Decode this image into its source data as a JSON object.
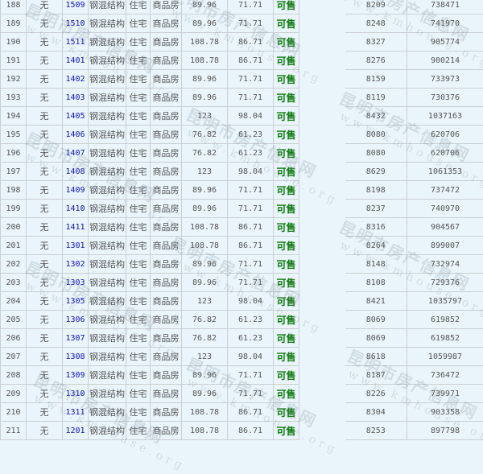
{
  "colors": {
    "background": "#eaf5fb",
    "room_link": "#1010c0",
    "status_available": "#0a7a0a",
    "grid": "#c9cfd3"
  },
  "watermark": {
    "cn": "昆明市房产信息网",
    "en": "www.kmhouse.org"
  },
  "rows": [
    [
      "188",
      "无",
      "1509",
      "钢混结构",
      "住宅",
      "商品房",
      "89.96",
      "71.71",
      "可售",
      "",
      "8209",
      "738471"
    ],
    [
      "189",
      "无",
      "1510",
      "钢混结构",
      "住宅",
      "商品房",
      "89.96",
      "71.71",
      "可售",
      "",
      "8248",
      "741970"
    ],
    [
      "190",
      "无",
      "1511",
      "钢混结构",
      "住宅",
      "商品房",
      "108.78",
      "86.71",
      "可售",
      "",
      "8327",
      "905774"
    ],
    [
      "191",
      "无",
      "1401",
      "钢混结构",
      "住宅",
      "商品房",
      "108.78",
      "86.71",
      "可售",
      "",
      "8276",
      "900214"
    ],
    [
      "192",
      "无",
      "1402",
      "钢混结构",
      "住宅",
      "商品房",
      "89.96",
      "71.71",
      "可售",
      "",
      "8159",
      "733973"
    ],
    [
      "193",
      "无",
      "1403",
      "钢混结构",
      "住宅",
      "商品房",
      "89.96",
      "71.71",
      "可售",
      "",
      "8119",
      "730376"
    ],
    [
      "194",
      "无",
      "1405",
      "钢混结构",
      "住宅",
      "商品房",
      "123",
      "98.04",
      "可售",
      "",
      "8432",
      "1037163"
    ],
    [
      "195",
      "无",
      "1406",
      "钢混结构",
      "住宅",
      "商品房",
      "76.82",
      "61.23",
      "可售",
      "",
      "8080",
      "620706"
    ],
    [
      "196",
      "无",
      "1407",
      "钢混结构",
      "住宅",
      "商品房",
      "76.82",
      "61.23",
      "可售",
      "",
      "8080",
      "620706"
    ],
    [
      "197",
      "无",
      "1408",
      "钢混结构",
      "住宅",
      "商品房",
      "123",
      "98.04",
      "可售",
      "",
      "8629",
      "1061353"
    ],
    [
      "198",
      "无",
      "1409",
      "钢混结构",
      "住宅",
      "商品房",
      "89.96",
      "71.71",
      "可售",
      "",
      "8198",
      "737472"
    ],
    [
      "199",
      "无",
      "1410",
      "钢混结构",
      "住宅",
      "商品房",
      "89.96",
      "71.71",
      "可售",
      "",
      "8237",
      "740970"
    ],
    [
      "200",
      "无",
      "1411",
      "钢混结构",
      "住宅",
      "商品房",
      "108.78",
      "86.71",
      "可售",
      "",
      "8316",
      "904567"
    ],
    [
      "201",
      "无",
      "1301",
      "钢混结构",
      "住宅",
      "商品房",
      "108.78",
      "86.71",
      "可售",
      "",
      "8264",
      "899007"
    ],
    [
      "202",
      "无",
      "1302",
      "钢混结构",
      "住宅",
      "商品房",
      "89.96",
      "71.71",
      "可售",
      "",
      "8148",
      "732974"
    ],
    [
      "203",
      "无",
      "1303",
      "钢混结构",
      "住宅",
      "商品房",
      "89.96",
      "71.71",
      "可售",
      "",
      "8108",
      "729376"
    ],
    [
      "204",
      "无",
      "1305",
      "钢混结构",
      "住宅",
      "商品房",
      "123",
      "98.04",
      "可售",
      "",
      "8421",
      "1035797"
    ],
    [
      "205",
      "无",
      "1306",
      "钢混结构",
      "住宅",
      "商品房",
      "76.82",
      "61.23",
      "可售",
      "",
      "8069",
      "619852"
    ],
    [
      "206",
      "无",
      "1307",
      "钢混结构",
      "住宅",
      "商品房",
      "76.82",
      "61.23",
      "可售",
      "",
      "8069",
      "619852"
    ],
    [
      "207",
      "无",
      "1308",
      "钢混结构",
      "住宅",
      "商品房",
      "123",
      "98.04",
      "可售",
      "",
      "8618",
      "1059987"
    ],
    [
      "208",
      "无",
      "1309",
      "钢混结构",
      "住宅",
      "商品房",
      "89.96",
      "71.71",
      "可售",
      "",
      "8187",
      "736472"
    ],
    [
      "209",
      "无",
      "1310",
      "钢混结构",
      "住宅",
      "商品房",
      "89.96",
      "71.71",
      "可售",
      "",
      "8226",
      "739971"
    ],
    [
      "210",
      "无",
      "1311",
      "钢混结构",
      "住宅",
      "商品房",
      "108.78",
      "86.71",
      "可售",
      "",
      "8304",
      "903358"
    ],
    [
      "211",
      "无",
      "1201",
      "钢混结构",
      "住宅",
      "商品房",
      "108.78",
      "86.71",
      "可售",
      "",
      "8253",
      "897798"
    ]
  ]
}
